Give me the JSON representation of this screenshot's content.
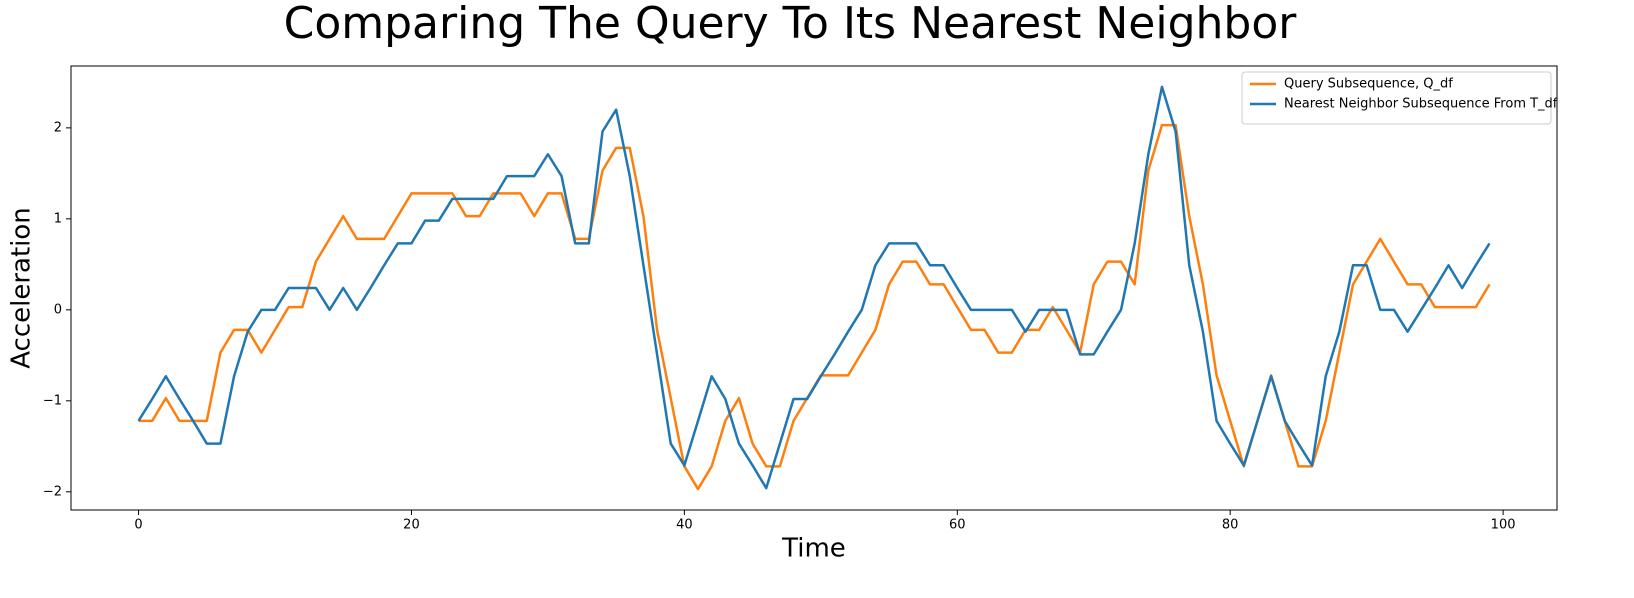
{
  "chart_data": {
    "type": "line",
    "title": "Comparing The Query To Its Nearest Neighbor",
    "x_label": "Time",
    "y_label": "Acceleration",
    "x": [
      0,
      1,
      2,
      3,
      4,
      5,
      6,
      7,
      8,
      9,
      10,
      11,
      12,
      13,
      14,
      15,
      16,
      17,
      18,
      19,
      20,
      21,
      22,
      23,
      24,
      25,
      26,
      27,
      28,
      29,
      30,
      31,
      32,
      33,
      34,
      35,
      36,
      37,
      38,
      39,
      40,
      41,
      42,
      43,
      44,
      45,
      46,
      47,
      48,
      49,
      50,
      51,
      52,
      53,
      54,
      55,
      56,
      57,
      58,
      59,
      60,
      61,
      62,
      63,
      64,
      65,
      66,
      67,
      68,
      69,
      70,
      71,
      72,
      73,
      74,
      75,
      76,
      77,
      78,
      79,
      80,
      81,
      82,
      83,
      84,
      85,
      86,
      87,
      88,
      89,
      90,
      91,
      92,
      93,
      94,
      95,
      96,
      97,
      98,
      99
    ],
    "series": [
      {
        "name": "Query Subsequence, Q_df",
        "color": "#ff7f0e",
        "values": [
          -1.22,
          -1.22,
          -0.97,
          -1.22,
          -1.22,
          -1.22,
          -0.47,
          -0.22,
          -0.22,
          -0.47,
          -0.22,
          0.03,
          0.03,
          0.53,
          0.78,
          1.03,
          0.78,
          0.78,
          0.78,
          1.03,
          1.28,
          1.28,
          1.28,
          1.28,
          1.03,
          1.03,
          1.28,
          1.28,
          1.28,
          1.03,
          1.28,
          1.28,
          0.78,
          0.78,
          1.53,
          1.78,
          1.78,
          1.03,
          -0.22,
          -0.97,
          -1.72,
          -1.97,
          -1.72,
          -1.22,
          -0.97,
          -1.47,
          -1.72,
          -1.72,
          -1.22,
          -0.97,
          -0.72,
          -0.72,
          -0.72,
          -0.47,
          -0.22,
          0.28,
          0.53,
          0.53,
          0.28,
          0.28,
          0.03,
          -0.22,
          -0.22,
          -0.47,
          -0.47,
          -0.22,
          -0.22,
          0.03,
          -0.22,
          -0.47,
          0.28,
          0.53,
          0.53,
          0.28,
          1.53,
          2.03,
          2.03,
          1.03,
          0.28,
          -0.72,
          -1.22,
          -1.72,
          -1.22,
          -0.72,
          -1.22,
          -1.72,
          -1.72,
          -1.22,
          -0.47,
          0.28,
          0.53,
          0.78,
          0.53,
          0.28,
          0.28,
          0.03,
          0.03,
          0.03,
          0.03,
          0.28
        ]
      },
      {
        "name": "Nearest Neighbor Subsequence From T_df",
        "color": "#1f77b4",
        "values": [
          -1.22,
          -0.98,
          -0.73,
          -0.98,
          -1.22,
          -1.47,
          -1.47,
          -0.73,
          -0.24,
          0,
          0,
          0.24,
          0.24,
          0.24,
          0,
          0.24,
          0,
          0.24,
          0.49,
          0.73,
          0.73,
          0.98,
          0.98,
          1.22,
          1.22,
          1.22,
          1.22,
          1.47,
          1.47,
          1.47,
          1.71,
          1.47,
          0.73,
          0.73,
          1.96,
          2.2,
          1.47,
          0.49,
          -0.49,
          -1.47,
          -1.71,
          -1.22,
          -0.73,
          -0.98,
          -1.47,
          -1.71,
          -1.96,
          -1.47,
          -0.98,
          -0.98,
          -0.73,
          -0.49,
          -0.24,
          0,
          0.49,
          0.73,
          0.73,
          0.73,
          0.49,
          0.49,
          0.24,
          0,
          0,
          0,
          0,
          -0.24,
          0,
          0,
          0,
          -0.49,
          -0.49,
          -0.24,
          0,
          0.73,
          1.71,
          2.45,
          1.96,
          0.49,
          -0.24,
          -1.22,
          -1.47,
          -1.71,
          -1.22,
          -0.73,
          -1.22,
          -1.47,
          -1.71,
          -0.73,
          -0.24,
          0.49,
          0.49,
          0,
          0,
          -0.24,
          0,
          0.24,
          0.49,
          0.24,
          0.49,
          0.73
        ]
      }
    ],
    "xlim": [
      -4.95,
      103.95
    ],
    "ylim": [
      -2.2,
      2.68
    ],
    "xticks": [
      0,
      20,
      40,
      60,
      80,
      100
    ],
    "yticks": [
      {
        "value": -2,
        "label": "−2"
      },
      {
        "value": -1,
        "label": "−1"
      },
      0,
      1,
      2
    ],
    "legend": "upper right",
    "grid": false
  }
}
